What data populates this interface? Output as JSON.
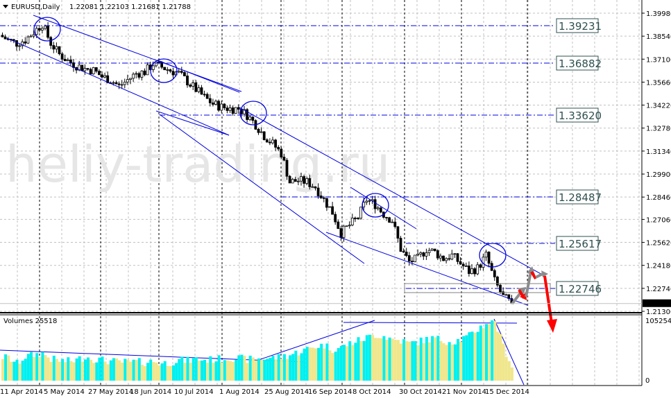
{
  "header": {
    "symbol": "EURUSD,Daily",
    "ohlc": "1.22081 1.22103 1.21681 1.21788"
  },
  "watermark": "heliy-trading.ru",
  "volume_label": "Volumes 25518",
  "colors": {
    "channel": "#0000e0",
    "level": "#0000e0",
    "bull_vol": "#00f0f0",
    "bear_vol": "#f0e68c",
    "arrow_red": "#ff0000",
    "arrow_gray": "#8c8c8c",
    "label_border": "#2f4f4f"
  },
  "chart_data": {
    "type": "candlestick",
    "price_axis": {
      "ticks": [
        "1.39980",
        "1.38540",
        "1.37100",
        "1.35660",
        "1.34220",
        "1.32780",
        "1.31340",
        "1.29900",
        "1.28460",
        "1.27060",
        "1.25620",
        "1.24180",
        "1.22740",
        "1.21300"
      ],
      "ylim": [
        1.213,
        1.3998
      ],
      "current": "1.21788"
    },
    "volume_axis": {
      "max": "105254",
      "min": "0"
    },
    "date_labels": [
      "11 Apr 2014",
      "5 May 2014",
      "27 May 2014",
      "18 Jun 2014",
      "10 Jul 2014",
      "1 Aug 2014",
      "25 Aug 2014",
      "16 Sep 2014",
      "8 Oct 2014",
      "30 Oct 2014",
      "21 Nov 2014",
      "15 Dec 2014"
    ],
    "closes_approx": [
      1.386,
      1.383,
      1.381,
      1.383,
      1.388,
      1.393,
      1.381,
      1.374,
      1.37,
      1.367,
      1.365,
      1.364,
      1.36,
      1.358,
      1.354,
      1.358,
      1.362,
      1.363,
      1.368,
      1.366,
      1.364,
      1.362,
      1.357,
      1.352,
      1.347,
      1.343,
      1.341,
      1.34,
      1.34,
      1.336,
      1.33,
      1.323,
      1.318,
      1.312,
      1.294,
      1.295,
      1.294,
      1.291,
      1.283,
      1.275,
      1.262,
      1.267,
      1.272,
      1.283,
      1.28,
      1.274,
      1.27,
      1.252,
      1.244,
      1.246,
      1.252,
      1.25,
      1.246,
      1.248,
      1.243,
      1.238,
      1.24,
      1.248,
      1.232,
      1.222,
      1.2179
    ],
    "volumes_approx": [
      42000,
      40000,
      30000,
      42000,
      45000,
      48000,
      38000,
      35000,
      34000,
      36000,
      42000,
      38000,
      36000,
      34000,
      33000,
      32000,
      33000,
      32000,
      34000,
      30000,
      32000,
      36000,
      35000,
      38000,
      36000,
      37000,
      38000,
      40000,
      39000,
      37000,
      38000,
      39000,
      40000,
      42000,
      45000,
      50000,
      55000,
      60000,
      62000,
      55000,
      58000,
      65000,
      70000,
      75000,
      80000,
      78000,
      72000,
      70000,
      65000,
      68000,
      72000,
      74000,
      70000,
      68000,
      72000,
      78000,
      90000,
      100000,
      105000,
      60000,
      25518
    ],
    "levels": [
      "1.39231",
      "1.36882",
      "1.33620",
      "1.28487",
      "1.25617",
      "1.22746"
    ]
  }
}
